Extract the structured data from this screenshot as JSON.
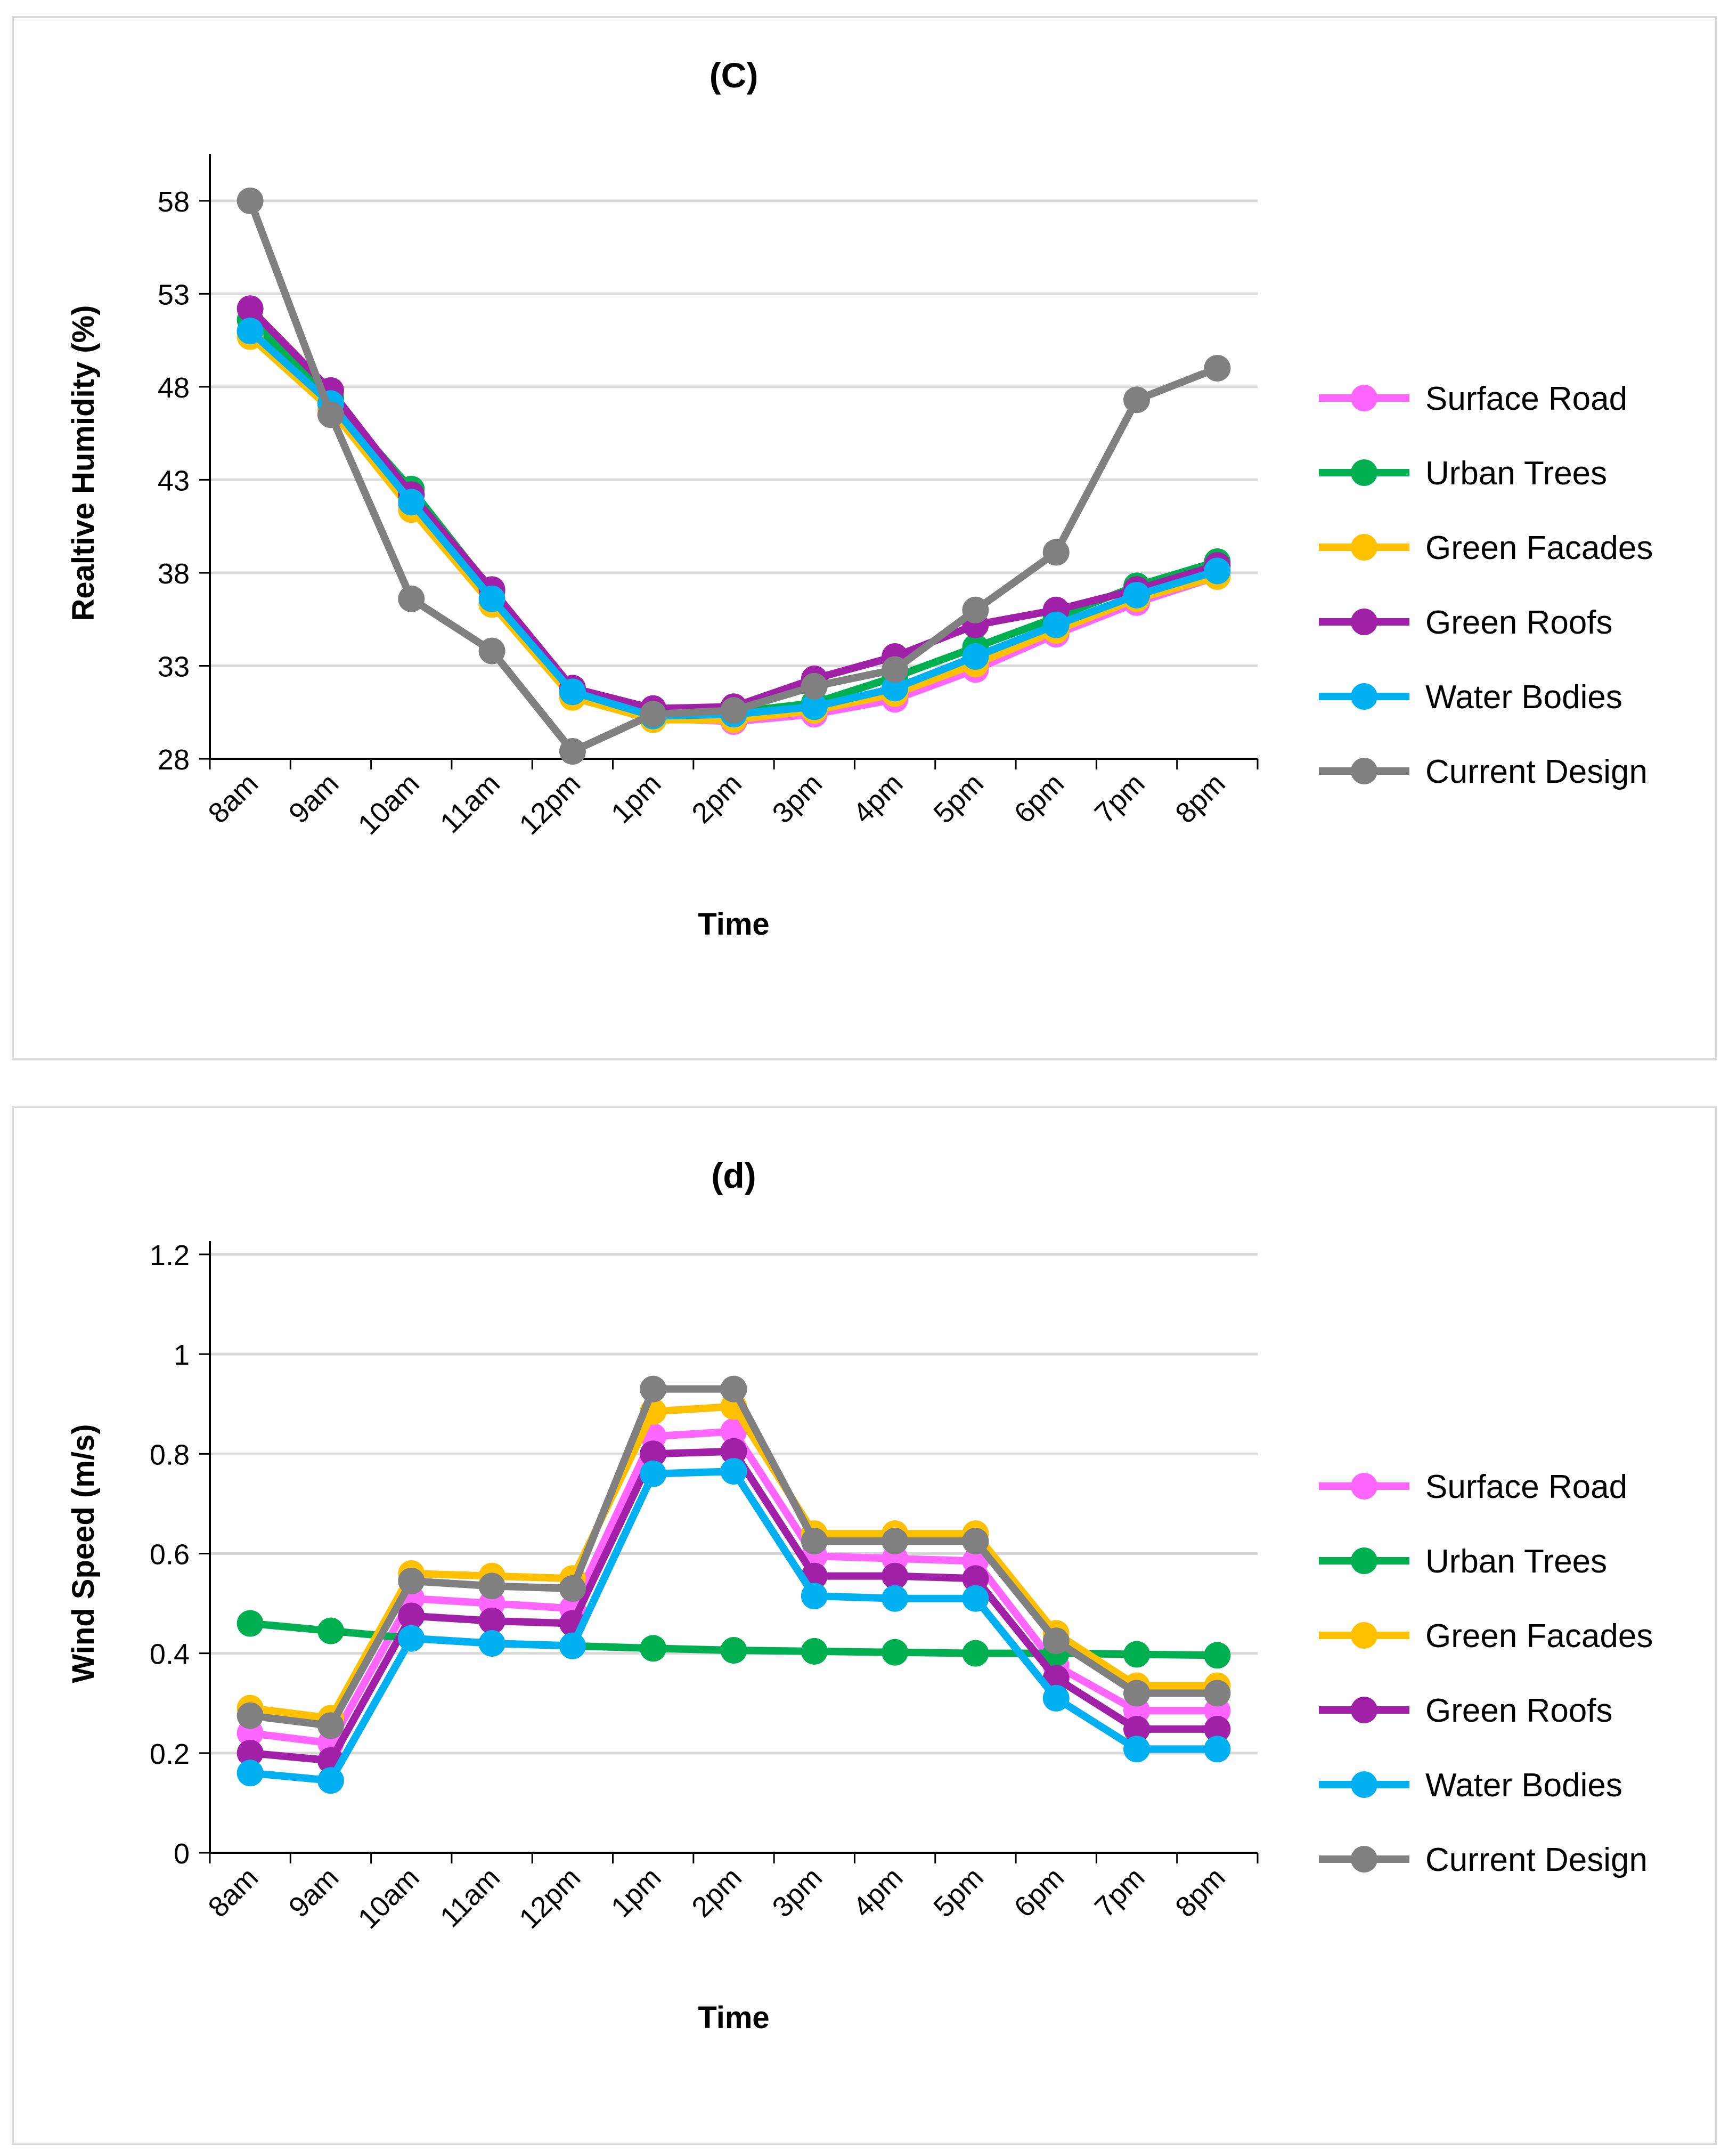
{
  "chart_data": [
    {
      "id": "c",
      "type": "line",
      "title": "(C)",
      "xlabel": "Time",
      "ylabel": "Realtive Humidity (%)",
      "categories": [
        "8am",
        "9am",
        "10am",
        "11am",
        "12pm",
        "1pm",
        "2pm",
        "3pm",
        "4pm",
        "5pm",
        "6pm",
        "7pm",
        "8pm"
      ],
      "ylim": [
        28,
        59.8
      ],
      "yticks": [
        28,
        33,
        38,
        43,
        48,
        53,
        58
      ],
      "grid": true,
      "legend": "right",
      "series": [
        {
          "name": "Surface Road",
          "color": "#ff66ff",
          "values": [
            51.0,
            47.0,
            41.6,
            36.4,
            31.4,
            30.2,
            30.0,
            30.4,
            31.2,
            32.8,
            34.7,
            36.4,
            37.8
          ]
        },
        {
          "name": "Urban Trees",
          "color": "#00b050",
          "values": [
            51.6,
            47.4,
            42.5,
            37.0,
            31.6,
            30.4,
            30.5,
            31.0,
            32.4,
            34.0,
            35.6,
            37.3,
            38.6
          ]
        },
        {
          "name": "Green Facades",
          "color": "#ffc000",
          "values": [
            50.7,
            46.8,
            41.4,
            36.3,
            31.3,
            30.1,
            30.1,
            30.6,
            31.5,
            33.1,
            34.9,
            36.6,
            37.8
          ]
        },
        {
          "name": "Green Roofs",
          "color": "#a020a8",
          "values": [
            52.2,
            47.8,
            42.2,
            37.1,
            31.8,
            30.7,
            30.8,
            32.3,
            33.5,
            35.2,
            36.0,
            37.1,
            38.4
          ]
        },
        {
          "name": "Water Bodies",
          "color": "#00b0f0",
          "values": [
            51.0,
            47.1,
            41.8,
            36.6,
            31.6,
            30.3,
            30.4,
            30.8,
            31.8,
            33.5,
            35.2,
            36.8,
            38.1
          ]
        },
        {
          "name": "Current Design",
          "color": "#808080",
          "values": [
            58.0,
            46.5,
            36.6,
            33.8,
            28.4,
            30.4,
            30.6,
            31.9,
            32.8,
            36.0,
            39.1,
            47.3,
            49.0
          ]
        }
      ]
    },
    {
      "id": "d",
      "type": "line",
      "title": "(d)",
      "xlabel": "Time",
      "ylabel": "Wind Speed (m/s)",
      "categories": [
        "8am",
        "9am",
        "10am",
        "11am",
        "12pm",
        "1pm",
        "2pm",
        "3pm",
        "4pm",
        "5pm",
        "6pm",
        "7pm",
        "8pm"
      ],
      "ylim": [
        0,
        1.2
      ],
      "yticks": [
        0,
        0.2,
        0.4,
        0.6,
        0.8,
        1,
        1.2
      ],
      "grid": true,
      "legend": "right",
      "series": [
        {
          "name": "Surface Road",
          "color": "#ff66ff",
          "values": [
            0.24,
            0.22,
            0.51,
            0.5,
            0.49,
            0.835,
            0.845,
            0.595,
            0.59,
            0.585,
            0.375,
            0.285,
            0.285
          ]
        },
        {
          "name": "Urban Trees",
          "color": "#00b050",
          "values": [
            0.46,
            0.445,
            0.43,
            0.42,
            0.415,
            0.41,
            0.406,
            0.404,
            0.402,
            0.4,
            0.4,
            0.398,
            0.396
          ]
        },
        {
          "name": "Green Facades",
          "color": "#ffc000",
          "values": [
            0.29,
            0.27,
            0.56,
            0.555,
            0.55,
            0.885,
            0.895,
            0.64,
            0.64,
            0.64,
            0.44,
            0.335,
            0.335
          ]
        },
        {
          "name": "Green Roofs",
          "color": "#a020a8",
          "values": [
            0.2,
            0.185,
            0.475,
            0.465,
            0.46,
            0.8,
            0.805,
            0.555,
            0.555,
            0.55,
            0.35,
            0.248,
            0.248
          ]
        },
        {
          "name": "Water Bodies",
          "color": "#00b0f0",
          "values": [
            0.16,
            0.145,
            0.43,
            0.42,
            0.415,
            0.76,
            0.765,
            0.515,
            0.51,
            0.51,
            0.31,
            0.208,
            0.208
          ]
        },
        {
          "name": "Current Design",
          "color": "#808080",
          "values": [
            0.275,
            0.255,
            0.545,
            0.535,
            0.53,
            0.93,
            0.93,
            0.625,
            0.625,
            0.625,
            0.425,
            0.32,
            0.32
          ]
        }
      ]
    }
  ]
}
